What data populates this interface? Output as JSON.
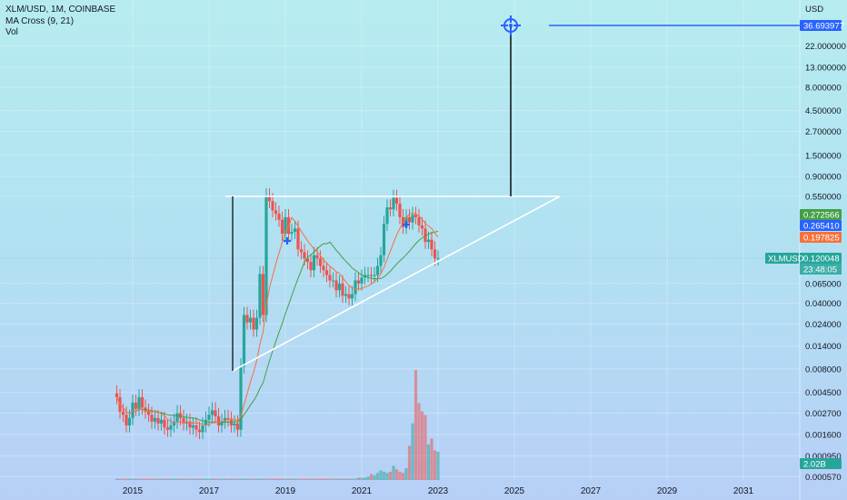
{
  "legend": {
    "symbol": "XLM/USD, 1M, COINBASE",
    "indicator": "MA Cross (9, 21)",
    "volume": "Vol"
  },
  "currency": "USD",
  "colors": {
    "up": "#26a69a",
    "down": "#ef5350",
    "ma_fast": "#f7713b",
    "ma_slow": "#43a047",
    "drawing": "#ffffff",
    "target": "#2962ff",
    "cross_marker": "#2962ff"
  },
  "chart_data": {
    "type": "candlestick",
    "scale": "log",
    "x_ticks": [
      "2015",
      "2017",
      "2019",
      "2021",
      "2023",
      "2025",
      "2027",
      "2029",
      "2031"
    ],
    "y_ticks": [
      22.0,
      13.0,
      8.0,
      4.5,
      2.7,
      1.5,
      0.9,
      0.55,
      0.065,
      0.04,
      0.024,
      0.014,
      0.008,
      0.0045,
      0.0027,
      0.0016,
      0.00095,
      0.00057
    ],
    "y_tick_labels": [
      "22.000000",
      "13.000000",
      "8.000000",
      "4.500000",
      "2.700000",
      "1.500000",
      "0.900000",
      "0.550000",
      "0.065000",
      "0.040000",
      "0.024000",
      "0.014000",
      "0.008000",
      "0.004500",
      "0.002700",
      "0.001600",
      "0.000950",
      "0.000570"
    ],
    "price_badges": [
      {
        "label": "36.693977",
        "value": 36.693977,
        "color": "#2962ff"
      },
      {
        "label": "0.272566",
        "value": 0.272566,
        "color": "#43a047"
      },
      {
        "label": "0.265410",
        "value": 0.26541,
        "color": "#2962ff"
      },
      {
        "label": "0.197825",
        "value": 0.197825,
        "color": "#f7713b"
      },
      {
        "label": "0.120048",
        "value": 0.120048,
        "color": "#26a69a"
      },
      {
        "label": "2.02B",
        "value": 0.00065,
        "color": "#26a69a"
      }
    ],
    "last_price": {
      "symbol": "XLMUSD",
      "value": "0.120048",
      "countdown": "23:48:05"
    },
    "target_price": 36.693977,
    "resistance_level": 0.55,
    "monthly_closes": [
      0.004,
      0.0028,
      0.0026,
      0.002,
      0.0024,
      0.0035,
      0.003,
      0.004,
      0.0031,
      0.0028,
      0.0026,
      0.0022,
      0.0024,
      0.0021,
      0.0023,
      0.0019,
      0.0018,
      0.002,
      0.0022,
      0.0027,
      0.0024,
      0.0021,
      0.0022,
      0.0019,
      0.002,
      0.0018,
      0.0017,
      0.002,
      0.0023,
      0.0026,
      0.0029,
      0.0025,
      0.002,
      0.0022,
      0.0024,
      0.0023,
      0.002,
      0.0021,
      0.0018,
      0.0085,
      0.03,
      0.025,
      0.028,
      0.021,
      0.028,
      0.082,
      0.03,
      0.55,
      0.49,
      0.39,
      0.36,
      0.31,
      0.22,
      0.33,
      0.22,
      0.23,
      0.25,
      0.15,
      0.14,
      0.12,
      0.11,
      0.09,
      0.13,
      0.12,
      0.1,
      0.09,
      0.08,
      0.07,
      0.07,
      0.055,
      0.065,
      0.048,
      0.05,
      0.045,
      0.05,
      0.07,
      0.065,
      0.075,
      0.08,
      0.08,
      0.078,
      0.08,
      0.1,
      0.13,
      0.28,
      0.42,
      0.4,
      0.53,
      0.46,
      0.33,
      0.26,
      0.33,
      0.29,
      0.35,
      0.33,
      0.27,
      0.25,
      0.18,
      0.19,
      0.15,
      0.12,
      0.12
    ],
    "volume_relative": [
      0.01,
      0.01,
      0.01,
      0.01,
      0.01,
      0.01,
      0.01,
      0.01,
      0.01,
      0.01,
      0.01,
      0.01,
      0.01,
      0.01,
      0.01,
      0.01,
      0.01,
      0.01,
      0.01,
      0.01,
      0.01,
      0.01,
      0.01,
      0.01,
      0.01,
      0.01,
      0.01,
      0.01,
      0.01,
      0.01,
      0.01,
      0.01,
      0.01,
      0.01,
      0.01,
      0.01,
      0.01,
      0.01,
      0.01,
      0.01,
      0.01,
      0.01,
      0.01,
      0.01,
      0.01,
      0.01,
      0.01,
      0.01,
      0.01,
      0.01,
      0.01,
      0.01,
      0.01,
      0.01,
      0.01,
      0.01,
      0.01,
      0.01,
      0.01,
      0.01,
      0.01,
      0.01,
      0.01,
      0.01,
      0.01,
      0.01,
      0.01,
      0.01,
      0.01,
      0.01,
      0.01,
      0.01,
      0.01,
      0.01,
      0.01,
      0.01,
      0.02,
      0.02,
      0.02,
      0.03,
      0.05,
      0.04,
      0.06,
      0.08,
      0.07,
      0.06,
      0.07,
      0.12,
      0.09,
      0.07,
      0.06,
      0.1,
      0.29,
      0.48,
      0.93,
      0.65,
      0.58,
      0.55,
      0.3,
      0.35,
      0.25,
      0.24
    ]
  }
}
